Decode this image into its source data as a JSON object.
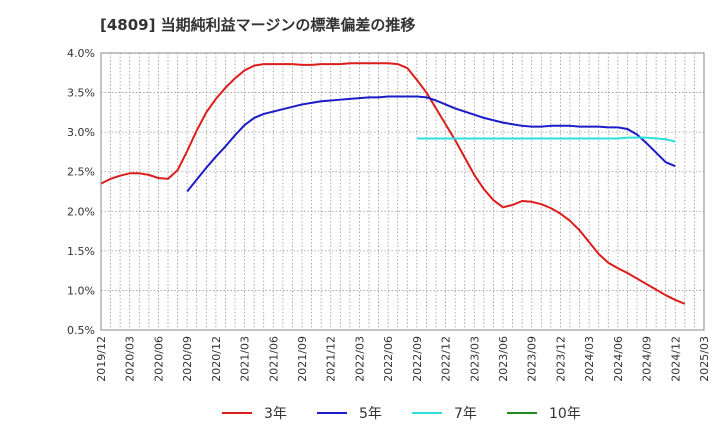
{
  "chart_data": {
    "type": "line",
    "title": "[4809]  当期純利益マージンの標準偏差の推移",
    "xlabel": "",
    "ylabel": "",
    "ylim": [
      0.5,
      4.0
    ],
    "yticks": [
      "4.0%",
      "3.5%",
      "3.0%",
      "2.5%",
      "2.0%",
      "1.5%",
      "1.0%",
      "0.5%"
    ],
    "yticks_values": [
      4.0,
      3.5,
      3.0,
      2.5,
      2.0,
      1.5,
      1.0,
      0.5
    ],
    "x_tick_labels": [
      "2019/12",
      "2020/03",
      "2020/06",
      "2020/09",
      "2020/12",
      "2021/03",
      "2021/06",
      "2021/09",
      "2021/12",
      "2022/03",
      "2022/06",
      "2022/09",
      "2022/12",
      "2023/03",
      "2023/06",
      "2023/09",
      "2023/12",
      "2024/03",
      "2024/06",
      "2024/09",
      "2024/12",
      "2025/03"
    ],
    "x_months": [
      "2019/12",
      "2020/01",
      "2020/02",
      "2020/03",
      "2020/04",
      "2020/05",
      "2020/06",
      "2020/07",
      "2020/08",
      "2020/09",
      "2020/10",
      "2020/11",
      "2020/12",
      "2021/01",
      "2021/02",
      "2021/03",
      "2021/04",
      "2021/05",
      "2021/06",
      "2021/07",
      "2021/08",
      "2021/09",
      "2021/10",
      "2021/11",
      "2021/12",
      "2022/01",
      "2022/02",
      "2022/03",
      "2022/04",
      "2022/05",
      "2022/06",
      "2022/07",
      "2022/08",
      "2022/09",
      "2022/10",
      "2022/11",
      "2022/12",
      "2023/01",
      "2023/02",
      "2023/03",
      "2023/04",
      "2023/05",
      "2023/06",
      "2023/07",
      "2023/08",
      "2023/09",
      "2023/10",
      "2023/11",
      "2023/12",
      "2024/01",
      "2024/02",
      "2024/03",
      "2024/04",
      "2024/05",
      "2024/06",
      "2024/07",
      "2024/08",
      "2024/09",
      "2024/10",
      "2024/11",
      "2024/12",
      "2025/01",
      "2025/02",
      "2025/03"
    ],
    "grid": true,
    "legend_position": "bottom",
    "series": [
      {
        "name": "3年",
        "color": "#dd1c1c",
        "start": "2019/12",
        "values": [
          2.35,
          2.41,
          2.45,
          2.48,
          2.48,
          2.46,
          2.42,
          2.41,
          2.52,
          2.76,
          3.02,
          3.25,
          3.42,
          3.56,
          3.68,
          3.78,
          3.84,
          3.86,
          3.86,
          3.86,
          3.86,
          3.85,
          3.85,
          3.86,
          3.86,
          3.86,
          3.87,
          3.87,
          3.87,
          3.87,
          3.87,
          3.86,
          3.81,
          3.66,
          3.5,
          3.3,
          3.1,
          2.9,
          2.68,
          2.46,
          2.28,
          2.14,
          2.05,
          2.08,
          2.13,
          2.12,
          2.09,
          2.04,
          1.97,
          1.88,
          1.76,
          1.61,
          1.46,
          1.35,
          1.28,
          1.22,
          1.15,
          1.08,
          1.01,
          0.94,
          0.88,
          0.83
        ]
      },
      {
        "name": "5年",
        "color": "#1c1cc8",
        "start": "2020/09",
        "values": [
          2.25,
          2.4,
          2.55,
          2.69,
          2.82,
          2.96,
          3.09,
          3.18,
          3.23,
          3.26,
          3.29,
          3.32,
          3.35,
          3.37,
          3.39,
          3.4,
          3.41,
          3.42,
          3.43,
          3.44,
          3.44,
          3.45,
          3.45,
          3.45,
          3.45,
          3.44,
          3.4,
          3.35,
          3.3,
          3.26,
          3.22,
          3.18,
          3.15,
          3.12,
          3.1,
          3.08,
          3.07,
          3.07,
          3.08,
          3.08,
          3.08,
          3.07,
          3.07,
          3.07,
          3.06,
          3.06,
          3.04,
          2.97,
          2.86,
          2.74,
          2.62,
          2.57
        ]
      },
      {
        "name": "7年",
        "color": "#2de0e0",
        "start": "2022/09",
        "values": [
          2.92,
          2.92,
          2.92,
          2.92,
          2.92,
          2.92,
          2.92,
          2.92,
          2.92,
          2.92,
          2.92,
          2.92,
          2.92,
          2.92,
          2.92,
          2.92,
          2.92,
          2.92,
          2.92,
          2.92,
          2.92,
          2.92,
          2.93,
          2.93,
          2.93,
          2.92,
          2.91,
          2.88
        ]
      },
      {
        "name": "10年",
        "color": "#1f8a1f",
        "start": "2022/09",
        "values": []
      }
    ]
  }
}
